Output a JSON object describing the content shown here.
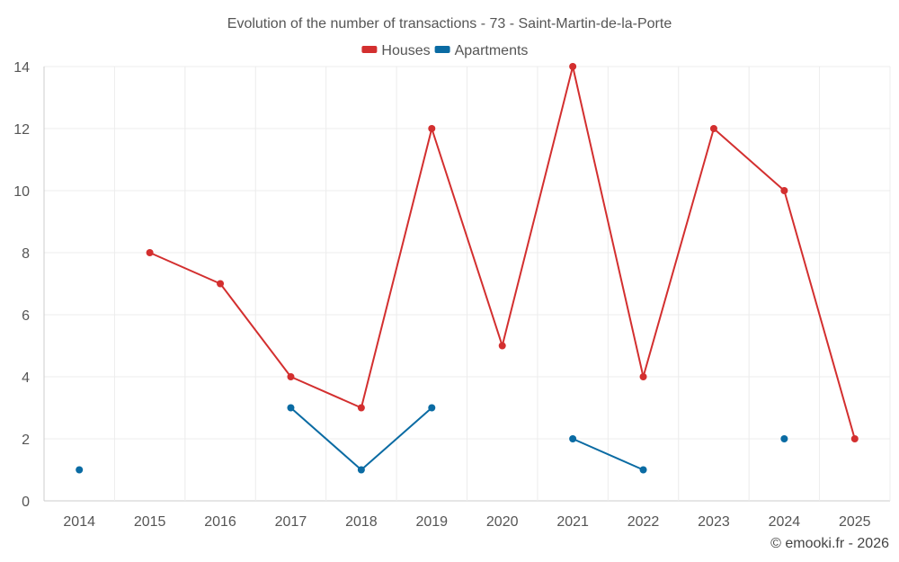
{
  "chart_data": {
    "type": "line",
    "title": "Evolution of the number of transactions - 73 - Saint-Martin-de-la-Porte",
    "xlabel": "",
    "ylabel": "",
    "categories": [
      "2014",
      "2015",
      "2016",
      "2017",
      "2018",
      "2019",
      "2020",
      "2021",
      "2022",
      "2023",
      "2024",
      "2025"
    ],
    "ylim": [
      0,
      14
    ],
    "yticks": [
      0,
      2,
      4,
      6,
      8,
      10,
      12,
      14
    ],
    "grid": true,
    "legend_position": "top-center",
    "series": [
      {
        "name": "Houses",
        "color": "#d32f2f",
        "values": [
          null,
          8,
          7,
          4,
          3,
          12,
          5,
          14,
          4,
          12,
          10,
          2
        ]
      },
      {
        "name": "Apartments",
        "color": "#0a6ba3",
        "values": [
          1,
          null,
          null,
          3,
          1,
          3,
          null,
          2,
          1,
          null,
          2,
          null
        ]
      }
    ]
  },
  "credit": "© emooki.fr - 2026"
}
